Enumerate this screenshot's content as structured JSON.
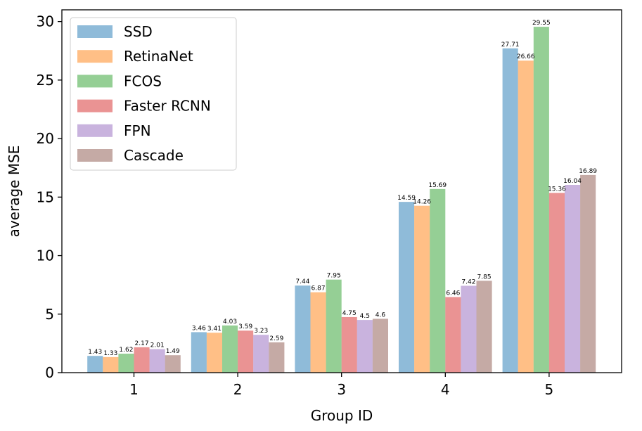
{
  "chart_data": {
    "type": "bar",
    "xlabel": "Group ID",
    "ylabel": "average MSE",
    "categories": [
      "1",
      "2",
      "3",
      "4",
      "5"
    ],
    "ylim": [
      0,
      31
    ],
    "yticks": [
      0,
      5,
      10,
      15,
      20,
      25,
      30
    ],
    "legend_position": "top-left",
    "grid": false,
    "series": [
      {
        "name": "SSD",
        "color": "#1f77b4",
        "values": [
          1.43,
          3.46,
          7.44,
          14.59,
          27.71
        ]
      },
      {
        "name": "RetinaNet",
        "color": "#ff7f0e",
        "values": [
          1.33,
          3.41,
          6.87,
          14.26,
          26.66
        ]
      },
      {
        "name": "FCOS",
        "color": "#2ca02c",
        "values": [
          1.62,
          4.03,
          7.95,
          15.69,
          29.55
        ]
      },
      {
        "name": "Faster RCNN",
        "color": "#d62728",
        "values": [
          2.17,
          3.59,
          4.75,
          6.46,
          15.36
        ]
      },
      {
        "name": "FPN",
        "color": "#9467bd",
        "values": [
          2.01,
          3.23,
          4.5,
          7.42,
          16.04
        ]
      },
      {
        "name": "Cascade",
        "color": "#8c564b",
        "values": [
          1.49,
          2.59,
          4.6,
          7.85,
          16.89
        ]
      }
    ]
  }
}
